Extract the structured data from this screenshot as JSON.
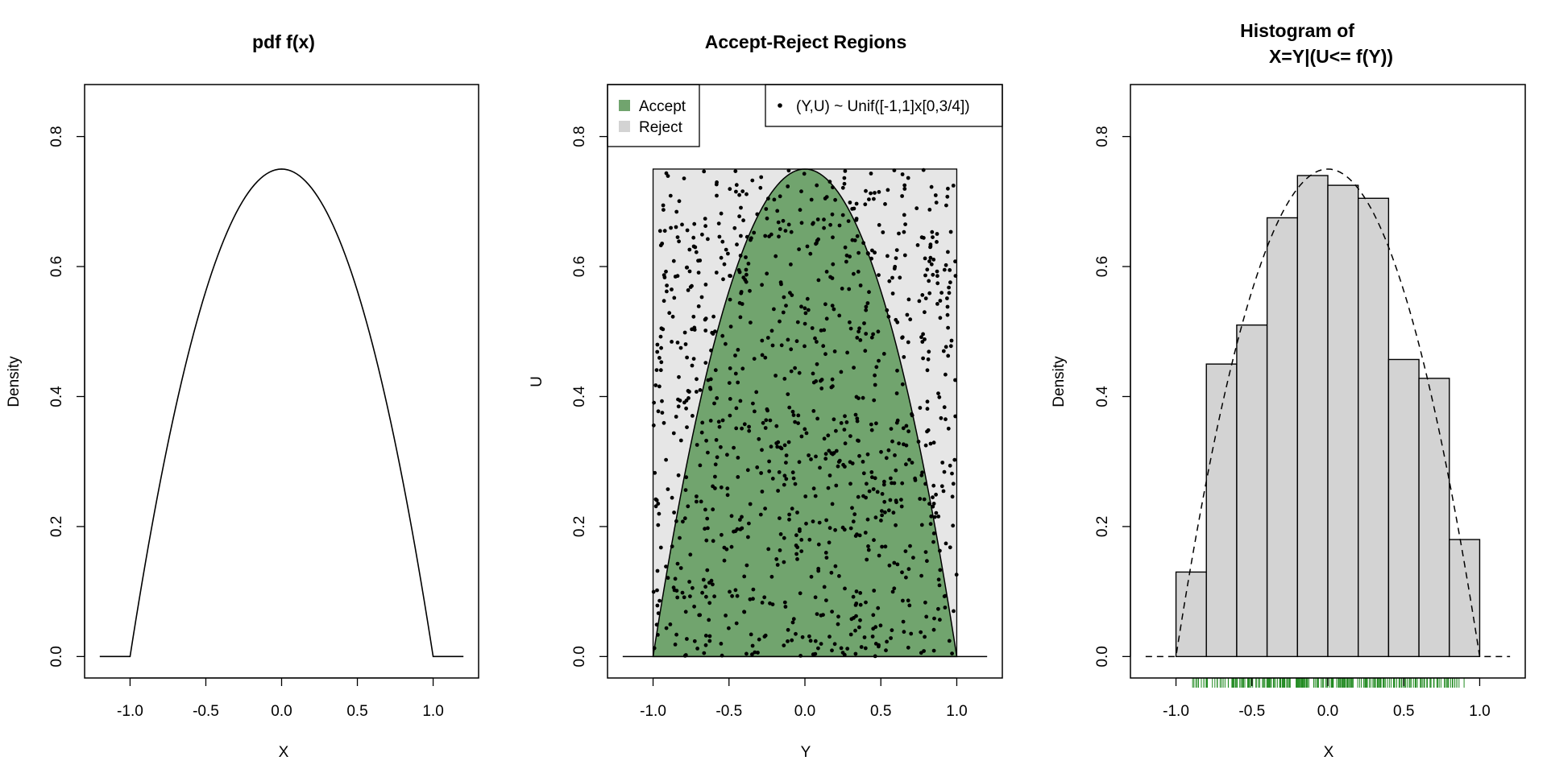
{
  "chart_data": [
    {
      "type": "line",
      "title": "pdf f(x)",
      "xlabel": "X",
      "ylabel": "Density",
      "xlim": [
        -1.3,
        1.3
      ],
      "ylim": [
        -0.033,
        0.88
      ],
      "x_ticks": [
        -1.0,
        -0.5,
        0.0,
        0.5,
        1.0
      ],
      "x_tick_labels": [
        "-1.0",
        "-0.5",
        "0.0",
        "0.5",
        "1.0"
      ],
      "y_ticks": [
        0.0,
        0.2,
        0.4,
        0.6,
        0.8
      ],
      "y_tick_labels": [
        "0.0",
        "0.2",
        "0.4",
        "0.6",
        "0.8"
      ],
      "grid": false,
      "series": [
        {
          "x": [
            -1.2,
            -1.0,
            -0.9,
            -0.8,
            -0.7,
            -0.6,
            -0.5,
            -0.4,
            -0.3,
            -0.2,
            -0.1,
            0.0,
            0.1,
            0.2,
            0.3,
            0.4,
            0.5,
            0.6,
            0.7,
            0.8,
            0.9,
            1.0,
            1.2
          ],
          "y": [
            0.0,
            0.0,
            0.1425,
            0.27,
            0.3825,
            0.48,
            0.5625,
            0.63,
            0.6825,
            0.72,
            0.7425,
            0.75,
            0.7425,
            0.72,
            0.6825,
            0.63,
            0.5625,
            0.48,
            0.3825,
            0.27,
            0.1425,
            0.0,
            0.0
          ]
        }
      ]
    },
    {
      "type": "scatter",
      "title": "Accept-Reject Regions",
      "xlabel": "Y",
      "ylabel": "U",
      "xlim": [
        -1.3,
        1.3
      ],
      "ylim": [
        -0.033,
        0.88
      ],
      "x_ticks": [
        -1.0,
        -0.5,
        0.0,
        0.5,
        1.0
      ],
      "x_tick_labels": [
        "-1.0",
        "-0.5",
        "0.0",
        "0.5",
        "1.0"
      ],
      "y_ticks": [
        0.0,
        0.2,
        0.4,
        0.6,
        0.8
      ],
      "y_tick_labels": [
        "0.0",
        "0.2",
        "0.4",
        "0.6",
        "0.8"
      ],
      "grid": false,
      "regions": [
        {
          "name": "Accept",
          "color": "#71a46e",
          "description_curve": "f(y)=0.75(1-y^2)"
        },
        {
          "name": "Reject",
          "color": "#e6e6e6",
          "rect_x": [
            -1,
            1
          ],
          "rect_y": [
            0,
            0.75
          ]
        }
      ],
      "legend_regions": {
        "position": "top-left",
        "entries": [
          "Accept",
          "Reject"
        ],
        "colors": [
          "#71a46e",
          "#d3d3d3"
        ]
      },
      "legend_points": {
        "position": "top-right",
        "entries": [
          "(Y,U) ~ Unif([-1,1]x[0,3/4])"
        ]
      },
      "points_distribution": {
        "x_range": [
          -1,
          1
        ],
        "y_range": [
          0,
          0.75
        ],
        "n": 1000
      }
    },
    {
      "type": "bar",
      "title_line1": "Histogram of",
      "title_line2": "X=Y|(U<= f(Y))",
      "xlabel": "X",
      "ylabel": "Density",
      "xlim": [
        -1.3,
        1.3
      ],
      "ylim": [
        -0.033,
        0.88
      ],
      "x_ticks": [
        -1.0,
        -0.5,
        0.0,
        0.5,
        1.0
      ],
      "x_tick_labels": [
        "-1.0",
        "-0.5",
        "0.0",
        "0.5",
        "1.0"
      ],
      "y_ticks": [
        0.0,
        0.2,
        0.4,
        0.6,
        0.8
      ],
      "y_tick_labels": [
        "0.0",
        "0.2",
        "0.4",
        "0.6",
        "0.8"
      ],
      "grid": false,
      "bin_edges": [
        -1.0,
        -0.8,
        -0.6,
        -0.4,
        -0.2,
        0.0,
        0.2,
        0.4,
        0.6,
        0.8,
        1.0
      ],
      "values": [
        0.13,
        0.45,
        0.51,
        0.675,
        0.74,
        0.725,
        0.705,
        0.457,
        0.428,
        0.18
      ],
      "bar_color": "#d3d3d3",
      "overlay_density": "f(x)=0.75(1-x^2), dashed",
      "rug_color": "#228b22"
    }
  ]
}
